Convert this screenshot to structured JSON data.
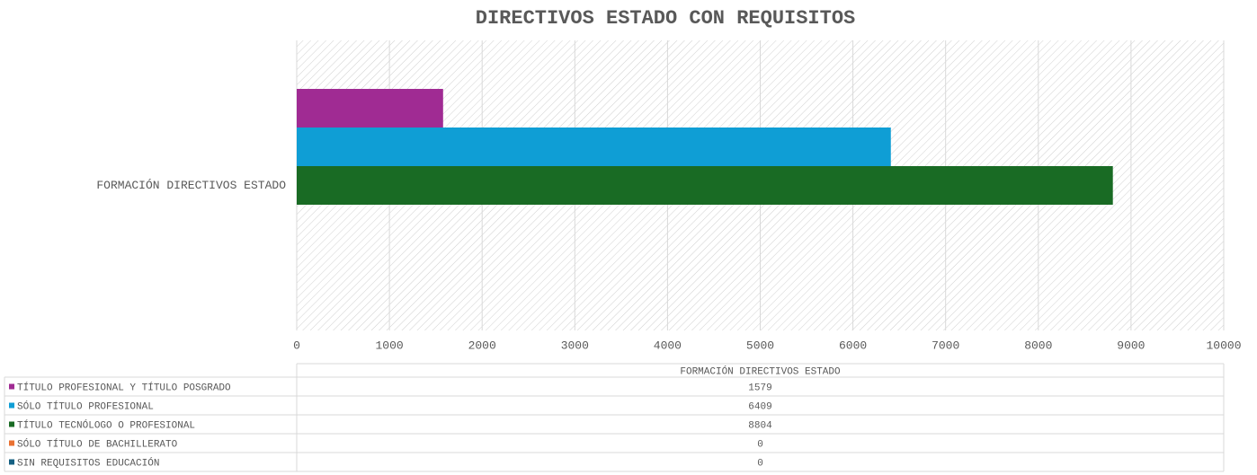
{
  "chart_data": {
    "type": "bar",
    "title": "DIRECTIVOS ESTADO CON REQUISITOS",
    "categories": [
      "FORMACIÓN DIRECTIVOS ESTADO"
    ],
    "series": [
      {
        "name": "TÍTULO PROFESIONAL Y TÍTULO POSGRADO",
        "color": "#a02b93",
        "values": [
          1579
        ]
      },
      {
        "name": "SÓLO TÍTULO PROFESIONAL",
        "color": "#0f9ed5",
        "values": [
          6409
        ]
      },
      {
        "name": "TÍTULO TECNÓLOGO O PROFESIONAL",
        "color": "#196b24",
        "values": [
          8804
        ]
      },
      {
        "name": "SÓLO TÍTULO DE BACHILLERATO",
        "color": "#e97132",
        "values": [
          0
        ]
      },
      {
        "name": "SIN REQUISITOS EDUCACIÓN",
        "color": "#156082",
        "values": [
          0
        ]
      }
    ],
    "xlim": [
      0,
      10000
    ],
    "xticks": [
      0,
      1000,
      2000,
      3000,
      4000,
      5000,
      6000,
      7000,
      8000,
      9000,
      10000
    ],
    "grid": true,
    "legend": "bottom"
  }
}
